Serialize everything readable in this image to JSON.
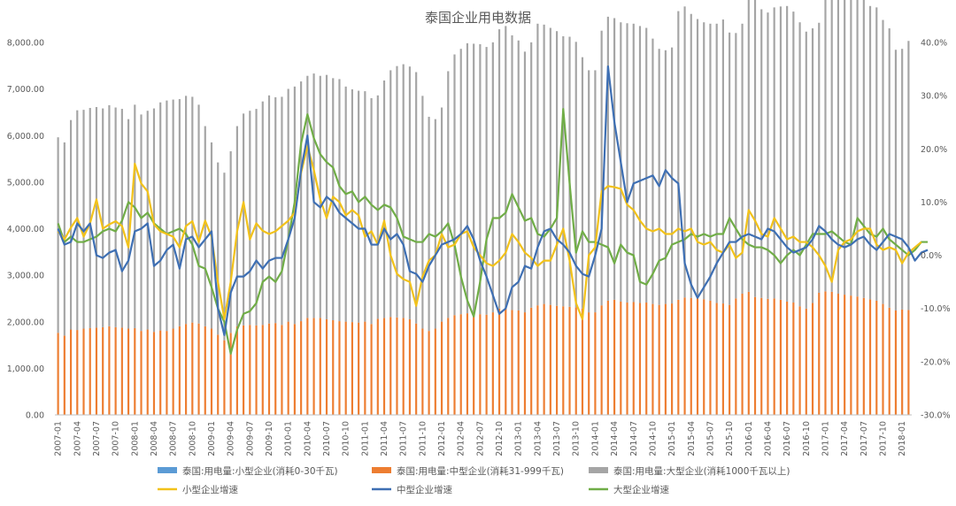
{
  "colors": {
    "small_bar": "#5B9BD5",
    "medium_bar": "#ED7D31",
    "large_bar": "#A5A5A5",
    "small_growth": "#F2C21A",
    "medium_growth": "#3E6FB3",
    "large_growth": "#70AD47"
  },
  "chart_data": {
    "type": "bar",
    "combo": "stacked-bar + line (secondary axis)",
    "title": "泰国企业用电数据",
    "y_left": {
      "min": 0,
      "max": 8000,
      "ticks": [
        "0.00",
        "1,000.00",
        "2,000.00",
        "3,000.00",
        "4,000.00",
        "5,000.00",
        "6,000.00",
        "7,000.00",
        "8,000.00"
      ]
    },
    "y_right": {
      "min": -30,
      "max": 40,
      "unit": "%",
      "ticks": [
        "-30.0%",
        "-20.0%",
        "-10.0%",
        "0.0%",
        "10.0%",
        "20.0%",
        "30.0%",
        "40.0%"
      ]
    },
    "grid": false,
    "legend_position": "bottom",
    "x_ticks": [
      "2007-01",
      "2007-04",
      "2007-07",
      "2007-10",
      "2008-01",
      "2008-04",
      "2008-07",
      "2008-10",
      "2009-01",
      "2009-04",
      "2009-07",
      "2009-10",
      "2010-01",
      "2010-04",
      "2010-07",
      "2010-10",
      "2011-01",
      "2011-04",
      "2011-07",
      "2011-10",
      "2012-01",
      "2012-04",
      "2012-07",
      "2012-10",
      "2013-01",
      "2013-04",
      "2013-07",
      "2013-10",
      "2014-01",
      "2014-04",
      "2014-07",
      "2014-10",
      "2015-01",
      "2015-04",
      "2015-07",
      "2015-10",
      "2016-01",
      "2016-04",
      "2016-07",
      "2016-10",
      "2017-01",
      "2017-04",
      "2017-07",
      "2017-10",
      "2018-01"
    ],
    "series": [
      {
        "name": "泰国:用电量:小型企业(消耗0-30千瓦)",
        "kind": "bar",
        "axis": "left",
        "color_key": "small_bar",
        "values": [
          3,
          3,
          3,
          3,
          3,
          3,
          3,
          3,
          3,
          3,
          3,
          3,
          3,
          3,
          3,
          3,
          3,
          3,
          3,
          3,
          3,
          3,
          3,
          3,
          3,
          3,
          3,
          3,
          3,
          3,
          3,
          3,
          3,
          3,
          3,
          3,
          3,
          3,
          3,
          3,
          3,
          3,
          3,
          3,
          3,
          3,
          3,
          3,
          3,
          3,
          3,
          3,
          3,
          3,
          3,
          3,
          3,
          3,
          3,
          3,
          3,
          3,
          3,
          3,
          3,
          3,
          3,
          3,
          3,
          3,
          3,
          3,
          3,
          3,
          3,
          3,
          3,
          3,
          3,
          3,
          3,
          3,
          3,
          3,
          3,
          3,
          3,
          3,
          3,
          3,
          3,
          3,
          3,
          3,
          3,
          3,
          3,
          3,
          3,
          3,
          3,
          3,
          3,
          3,
          3,
          3,
          3,
          3,
          3,
          3,
          3,
          3,
          3,
          3,
          3,
          3,
          3,
          3,
          3,
          3,
          3,
          3,
          3,
          3,
          3,
          3,
          3,
          3,
          3,
          3,
          3,
          3,
          3,
          3
        ]
      },
      {
        "name": "泰国:用电量:中型企业(消耗31-999千瓦)",
        "kind": "bar",
        "axis": "left",
        "color_key": "medium_bar",
        "values": [
          1760,
          1700,
          1830,
          1820,
          1850,
          1860,
          1870,
          1880,
          1900,
          1880,
          1870,
          1850,
          1860,
          1800,
          1830,
          1780,
          1810,
          1800,
          1850,
          1900,
          1950,
          1980,
          1960,
          1900,
          1850,
          1720,
          1600,
          1760,
          1900,
          1920,
          1930,
          1920,
          1930,
          1960,
          1970,
          1930,
          2000,
          1950,
          2010,
          2080,
          2080,
          2080,
          2050,
          2030,
          2010,
          2000,
          1990,
          1980,
          2000,
          1950,
          2060,
          2080,
          2100,
          2090,
          2080,
          2050,
          1960,
          1850,
          1800,
          1850,
          2000,
          2080,
          2140,
          2160,
          2180,
          2170,
          2160,
          2150,
          2200,
          2280,
          2300,
          2250,
          2240,
          2200,
          2300,
          2350,
          2380,
          2360,
          2340,
          2330,
          2320,
          2310,
          2280,
          2200,
          2200,
          2350,
          2450,
          2470,
          2430,
          2410,
          2420,
          2400,
          2410,
          2380,
          2360,
          2380,
          2390,
          2470,
          2520,
          2510,
          2500,
          2480,
          2450,
          2400,
          2390,
          2360,
          2500,
          2600,
          2640,
          2530,
          2510,
          2490,
          2500,
          2470,
          2430,
          2410,
          2330,
          2280,
          2400,
          2620,
          2650,
          2640,
          2600,
          2580,
          2560,
          2540,
          2510,
          2480,
          2450,
          2380,
          2300,
          2240,
          2260,
          2250
        ]
      },
      {
        "name": "泰国:用电量:大型企业(消耗1000千瓦以上)",
        "kind": "bar",
        "axis": "left",
        "color_key": "large_bar",
        "values": [
          4200,
          4150,
          4500,
          4720,
          4700,
          4730,
          4740,
          4700,
          4750,
          4720,
          4700,
          4500,
          4800,
          4650,
          4700,
          4800,
          4900,
          4950,
          4920,
          4880,
          4900,
          4850,
          4700,
          4300,
          4000,
          3700,
          3600,
          3900,
          4300,
          4550,
          4600,
          4650,
          4800,
          4900,
          4850,
          4900,
          5000,
          5100,
          5150,
          5200,
          5250,
          5200,
          5250,
          5200,
          5200,
          5050,
          5000,
          4980,
          4950,
          4850,
          4800,
          5100,
          5300,
          5400,
          5450,
          5430,
          5400,
          5000,
          4600,
          4500,
          4600,
          5300,
          5600,
          5700,
          5800,
          5800,
          5800,
          5750,
          5800,
          6000,
          6050,
          5900,
          5800,
          5600,
          5700,
          6050,
          6000,
          5950,
          5900,
          5800,
          5800,
          5700,
          5400,
          5200,
          5200,
          5900,
          6100,
          6050,
          6000,
          6000,
          5980,
          5950,
          5900,
          5700,
          5500,
          5450,
          5500,
          6200,
          6250,
          6100,
          6000,
          5950,
          5950,
          6000,
          6100,
          5850,
          5700,
          5800,
          6450,
          6400,
          6200,
          6150,
          6250,
          6300,
          6350,
          6250,
          6100,
          5950,
          5900,
          5800,
          6700,
          6550,
          6400,
          6400,
          6600,
          6550,
          6450,
          6300,
          6300,
          6100,
          6000,
          5600,
          5600,
          5780
        ]
      },
      {
        "name": "小型企业增速",
        "kind": "line",
        "axis": "right",
        "color_key": "small_growth",
        "values": [
          4.5,
          3,
          5.2,
          7,
          3.5,
          6,
          10.5,
          5,
          5.8,
          6.4,
          5.5,
          1.5,
          17.2,
          13.5,
          12,
          5.8,
          4.5,
          4,
          3.5,
          1.5,
          5.5,
          6.4,
          2.5,
          6.5,
          3.5,
          -5,
          -12,
          -5,
          4.5,
          10,
          3,
          6,
          4.6,
          4,
          4.5,
          5.5,
          6.5,
          8,
          15.5,
          20.5,
          16,
          10.5,
          7,
          11,
          10,
          7.5,
          8.5,
          7.5,
          3.5,
          4.5,
          2,
          6.5,
          0,
          -3.5,
          -4.5,
          -5,
          -9.5,
          -4,
          -1,
          0,
          4,
          1.5,
          2,
          4,
          4.5,
          1.5,
          0,
          -1.5,
          -2,
          -1,
          0.5,
          4,
          2.5,
          0.5,
          -0.5,
          -2,
          -1,
          -1,
          2,
          5,
          -1,
          -9,
          -12,
          0,
          1.5,
          12,
          13,
          12.8,
          12.5,
          9.5,
          8.5,
          6.5,
          5,
          4.5,
          5,
          4,
          4,
          5,
          4.5,
          5,
          2.5,
          2,
          2.5,
          1,
          0.5,
          2,
          -0.5,
          0.5,
          8.5,
          6.5,
          4,
          3.5,
          7,
          5,
          3,
          3.5,
          2.5,
          2.5,
          1.5,
          0,
          -2,
          -5,
          1,
          2.5,
          3,
          4.5,
          5,
          5,
          2,
          1,
          1.5,
          1,
          -1.5,
          0.5,
          1.5,
          2.5
        ]
      },
      {
        "name": "中型企业增速",
        "kind": "line",
        "axis": "right",
        "color_key": "medium_growth",
        "values": [
          5,
          2,
          2.5,
          6,
          4.5,
          6,
          0,
          -0.5,
          0.5,
          1,
          -3,
          -1,
          4.5,
          5,
          6,
          -2,
          -1,
          1,
          2,
          -2.5,
          3,
          3.5,
          1.5,
          3,
          4.5,
          -10,
          -15,
          -7,
          -4,
          -4,
          -3,
          -1,
          -2.5,
          -1,
          -0.5,
          -0.5,
          3,
          7,
          16,
          22.5,
          10,
          9,
          11,
          10,
          8,
          7,
          6,
          5,
          5,
          2,
          2,
          5,
          3,
          4,
          2,
          -3,
          -3.5,
          -5,
          -2,
          0,
          2,
          2.5,
          3,
          4,
          5.5,
          3,
          -1,
          -4,
          -7.5,
          -11,
          -10,
          -6,
          -5,
          -2,
          -2.5,
          1.5,
          4.5,
          5,
          3,
          2,
          0.5,
          -2,
          -3.5,
          -4,
          0,
          5,
          35.5,
          25,
          17.5,
          10,
          13.5,
          14,
          14.5,
          15,
          13,
          16,
          14.5,
          13.5,
          -1.5,
          -5.5,
          -8,
          -6,
          -4,
          -1.5,
          0.5,
          2.5,
          2.5,
          3.5,
          4,
          3.5,
          3,
          5,
          4.5,
          3,
          1.5,
          0.5,
          1,
          1.5,
          3,
          5.5,
          4.5,
          3,
          2,
          1.5,
          2,
          3,
          3.5,
          2,
          1,
          2.5,
          4,
          3.5,
          3,
          1.5,
          -1,
          0.5,
          1
        ]
      },
      {
        "name": "大型企业增速",
        "kind": "line",
        "axis": "right",
        "color_key": "large_growth",
        "values": [
          6,
          2.5,
          3.5,
          2.5,
          2.5,
          3,
          3.5,
          4.5,
          5,
          4.5,
          6.5,
          10,
          9,
          7,
          8,
          6,
          5,
          4,
          4.5,
          5,
          4,
          2,
          -2,
          -2.5,
          -6,
          -10,
          -12.5,
          -18.5,
          -14,
          -11,
          -10.5,
          -9,
          -5,
          -4,
          -5,
          -3,
          3,
          10,
          21,
          26.5,
          22,
          19,
          17.5,
          16.5,
          13,
          11.5,
          12,
          10,
          11,
          9.5,
          8.5,
          9.5,
          9,
          7,
          3.5,
          3,
          2.5,
          2.5,
          4,
          3.5,
          4.5,
          6,
          2,
          -4,
          -8.5,
          -11.5,
          -5,
          3,
          7,
          7,
          8,
          11.5,
          9,
          6.5,
          7,
          4,
          3.5,
          5,
          7,
          27.5,
          13.5,
          0.5,
          4.5,
          2.5,
          2.5,
          2,
          1.5,
          -1.5,
          2,
          0.5,
          0,
          -5,
          -5.5,
          -3.5,
          -1,
          -0.5,
          2,
          2.5,
          3,
          4,
          3.5,
          4,
          3.5,
          4,
          4,
          7,
          5,
          3,
          2,
          1.5,
          1.5,
          1,
          0,
          -1.5,
          0,
          1,
          0,
          2,
          4,
          4,
          4,
          4.5,
          3.5,
          2.5,
          2,
          7,
          5.5,
          4,
          3.5,
          5,
          3,
          2,
          1,
          0,
          1,
          2.5,
          2.5
        ]
      }
    ]
  }
}
